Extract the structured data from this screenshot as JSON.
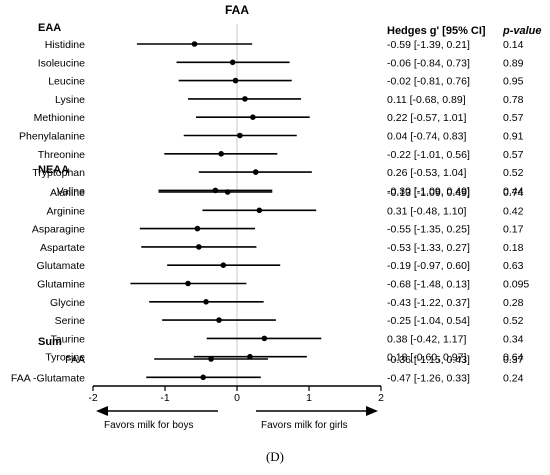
{
  "chart_data": {
    "type": "forest",
    "title": "FAA",
    "columns": {
      "effect": "Hedges g' [95% CI]",
      "p": "p-value"
    },
    "xlim": [
      -2,
      2
    ],
    "xticks": [
      "-2",
      "-1",
      "0",
      "1",
      "2"
    ],
    "reference_line": 0,
    "direction_left": "Favors milk for boys",
    "direction_right": "Favors milk for girls",
    "panel_label": "(D)",
    "groups": [
      {
        "name": "EAA",
        "rows": [
          {
            "label": "Histidine",
            "g": -0.59,
            "lo": -1.39,
            "hi": 0.21,
            "ci_text": "-0.59 [-1.39, 0.21]",
            "p": "0.14"
          },
          {
            "label": "Isoleucine",
            "g": -0.06,
            "lo": -0.84,
            "hi": 0.73,
            "ci_text": "-0.06 [-0.84, 0.73]",
            "p": "0.89"
          },
          {
            "label": "Leucine",
            "g": -0.02,
            "lo": -0.81,
            "hi": 0.76,
            "ci_text": "-0.02 [-0.81, 0.76]",
            "p": "0.95"
          },
          {
            "label": "Lysine",
            "g": 0.11,
            "lo": -0.68,
            "hi": 0.89,
            "ci_text": "0.11 [-0.68, 0.89]",
            "p": "0.78"
          },
          {
            "label": "Methionine",
            "g": 0.22,
            "lo": -0.57,
            "hi": 1.01,
            "ci_text": "0.22 [-0.57, 1.01]",
            "p": "0.57"
          },
          {
            "label": "Phenylalanine",
            "g": 0.04,
            "lo": -0.74,
            "hi": 0.83,
            "ci_text": "0.04 [-0.74, 0.83]",
            "p": "0.91"
          },
          {
            "label": "Threonine",
            "g": -0.22,
            "lo": -1.01,
            "hi": 0.56,
            "ci_text": "-0.22 [-1.01, 0.56]",
            "p": "0.57"
          },
          {
            "label": "Tryptophan",
            "g": 0.26,
            "lo": -0.53,
            "hi": 1.04,
            "ci_text": "0.26 [-0.53, 1.04]",
            "p": "0.52"
          },
          {
            "label": "Valine",
            "g": -0.3,
            "lo": -1.09,
            "hi": 0.49,
            "ci_text": "-0.30 [-1.09, 0.49]",
            "p": "0.44"
          }
        ]
      },
      {
        "name": "NEAA",
        "rows": [
          {
            "label": "Alanine",
            "g": -0.13,
            "lo": -1.09,
            "hi": 0.49,
            "ci_text": "-0.13 [-1.09, 0.49]",
            "p": "0.74"
          },
          {
            "label": "Arginine",
            "g": 0.31,
            "lo": -0.48,
            "hi": 1.1,
            "ci_text": "0.31 [-0.48, 1.10]",
            "p": "0.42"
          },
          {
            "label": "Asparagine",
            "g": -0.55,
            "lo": -1.35,
            "hi": 0.25,
            "ci_text": "-0.55 [-1.35, 0.25]",
            "p": "0.17"
          },
          {
            "label": "Aspartate",
            "g": -0.53,
            "lo": -1.33,
            "hi": 0.27,
            "ci_text": "-0.53 [-1.33, 0.27]",
            "p": "0.18"
          },
          {
            "label": "Glutamate",
            "g": -0.19,
            "lo": -0.97,
            "hi": 0.6,
            "ci_text": "-0.19 [-0.97, 0.60]",
            "p": "0.63"
          },
          {
            "label": "Glutamine",
            "g": -0.68,
            "lo": -1.48,
            "hi": 0.13,
            "ci_text": "-0.68 [-1.48, 0.13]",
            "p": "0.095"
          },
          {
            "label": "Glycine",
            "g": -0.43,
            "lo": -1.22,
            "hi": 0.37,
            "ci_text": "-0.43 [-1.22, 0.37]",
            "p": "0.28"
          },
          {
            "label": "Serine",
            "g": -0.25,
            "lo": -1.04,
            "hi": 0.54,
            "ci_text": "-0.25 [-1.04, 0.54]",
            "p": "0.52"
          },
          {
            "label": "Taurine",
            "g": 0.38,
            "lo": -0.42,
            "hi": 1.17,
            "ci_text": "0.38 [-0.42, 1.17]",
            "p": "0.34"
          },
          {
            "label": "Tyrosine",
            "g": 0.18,
            "lo": -0.6,
            "hi": 0.97,
            "ci_text": "0.18 [-0.60, 0.97]",
            "p": "0.64"
          }
        ]
      },
      {
        "name": "Sum",
        "rows": [
          {
            "label": "FAA",
            "g": -0.36,
            "lo": -1.15,
            "hi": 0.43,
            "ci_text": "-0.36 [-1.15, 0.43]",
            "p": "0.37"
          },
          {
            "label": "FAA -Glutamate",
            "g": -0.47,
            "lo": -1.26,
            "hi": 0.33,
            "ci_text": "-0.47 [-1.26, 0.33]",
            "p": "0.24"
          }
        ]
      }
    ]
  }
}
